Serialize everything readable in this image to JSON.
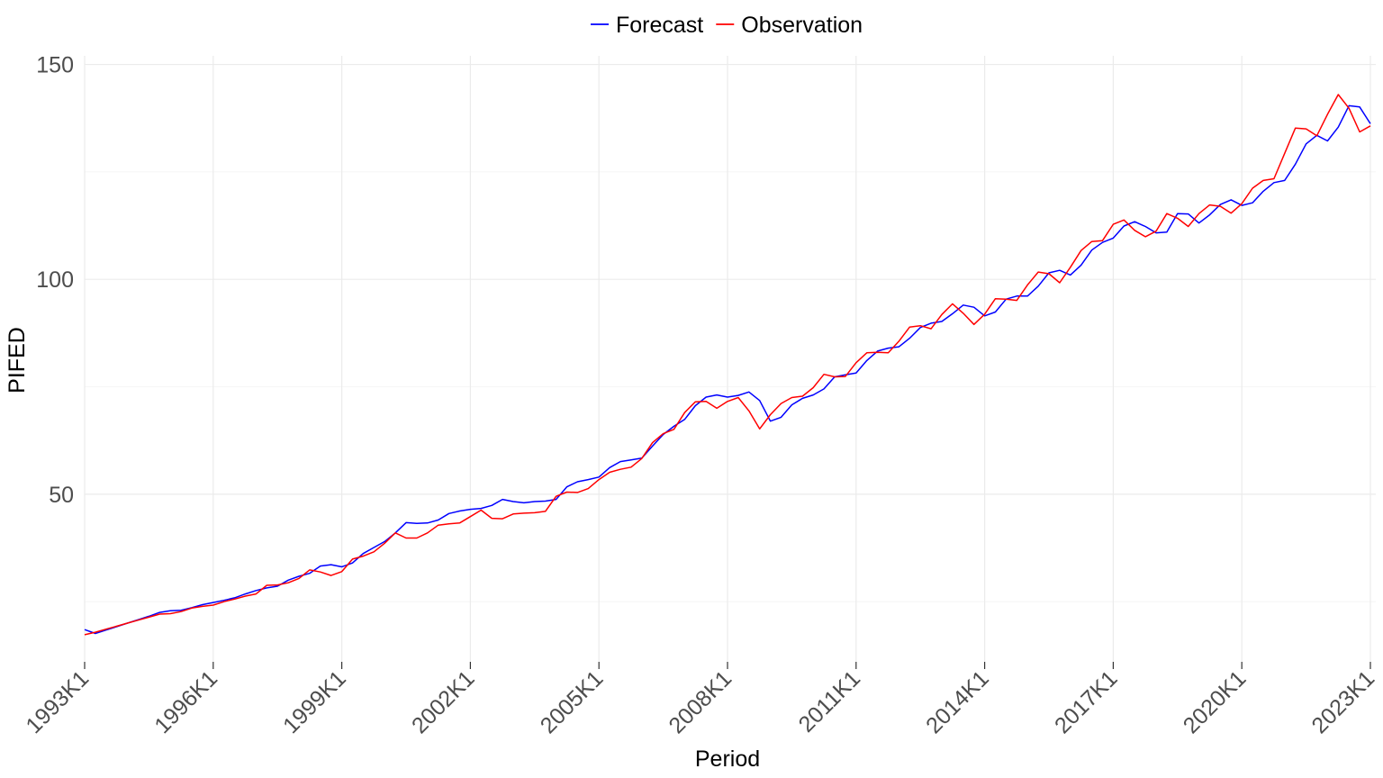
{
  "chart_data": {
    "type": "line",
    "title": "",
    "xlabel": "Period",
    "ylabel": "PIFED",
    "x_ticks": [
      "1993K1",
      "1996K1",
      "1999K1",
      "2002K1",
      "2005K1",
      "2008K1",
      "2011K1",
      "2014K1",
      "2017K1",
      "2020K1",
      "2023K1"
    ],
    "y_ticks": [
      50,
      100,
      150
    ],
    "ylim": [
      11,
      152
    ],
    "x_range": [
      "1993K1",
      "2023K1"
    ],
    "grid": true,
    "legend_position": "top",
    "start_period": "1993K1",
    "frequency": "quarterly",
    "series": [
      {
        "name": "Forecast",
        "color": "#0000ff",
        "values": [
          18.5,
          17.6,
          18.4,
          19.2,
          20.0,
          20.8,
          21.6,
          22.5,
          22.9,
          23.0,
          23.6,
          24.3,
          24.8,
          25.3,
          25.9,
          26.8,
          27.6,
          28.2,
          28.6,
          30.0,
          30.9,
          31.6,
          33.3,
          33.6,
          33.1,
          34.0,
          36.2,
          37.6,
          39.0,
          41.0,
          43.4,
          43.2,
          43.3,
          44.0,
          45.5,
          46.1,
          46.5,
          46.7,
          47.4,
          48.8,
          48.3,
          48.0,
          48.3,
          48.4,
          48.8,
          51.7,
          52.9,
          53.4,
          54.0,
          56.2,
          57.6,
          58.0,
          58.4,
          61.2,
          63.9,
          65.8,
          67.4,
          70.6,
          72.6,
          73.1,
          72.6,
          73.0,
          73.8,
          71.8,
          67.0,
          67.9,
          70.8,
          72.3,
          73.1,
          74.5,
          77.3,
          77.8,
          78.2,
          81.1,
          83.3,
          84.0,
          84.3,
          86.3,
          88.8,
          89.8,
          90.2,
          92.0,
          94.0,
          93.5,
          91.5,
          92.4,
          95.4,
          96.1,
          96.1,
          98.4,
          101.5,
          102.1,
          101.0,
          103.3,
          106.8,
          108.6,
          109.6,
          112.4,
          113.4,
          112.3,
          110.8,
          111.0,
          115.3,
          115.2,
          113.1,
          115.0,
          117.4,
          118.5,
          117.2,
          117.8,
          120.5,
          122.5,
          123.0,
          126.8,
          131.5,
          133.5,
          132.2,
          135.4,
          140.4,
          140.1,
          136.2
        ]
      },
      {
        "name": "Observation",
        "color": "#ff0000",
        "values": [
          17.3,
          17.9,
          18.6,
          19.3,
          20.0,
          20.7,
          21.4,
          22.1,
          22.2,
          22.7,
          23.5,
          23.9,
          24.2,
          25.0,
          25.6,
          26.3,
          26.8,
          28.8,
          28.9,
          29.4,
          30.4,
          32.4,
          31.9,
          31.1,
          32.0,
          34.9,
          35.6,
          36.6,
          38.6,
          41.0,
          39.8,
          39.8,
          41.0,
          42.8,
          43.1,
          43.3,
          44.8,
          46.3,
          44.4,
          44.3,
          45.4,
          45.6,
          45.7,
          46.0,
          49.5,
          50.5,
          50.4,
          51.3,
          53.4,
          55.1,
          55.8,
          56.3,
          58.3,
          62.0,
          64.1,
          65.1,
          69.0,
          71.5,
          71.6,
          70.0,
          71.6,
          72.5,
          69.4,
          65.2,
          68.5,
          71.1,
          72.5,
          72.8,
          74.8,
          77.9,
          77.3,
          77.4,
          80.6,
          82.9,
          83.0,
          82.9,
          85.6,
          88.9,
          89.2,
          88.5,
          91.8,
          94.3,
          92.1,
          89.5,
          91.9,
          95.5,
          95.4,
          95.1,
          98.7,
          101.7,
          101.3,
          99.2,
          102.8,
          106.7,
          108.8,
          109.0,
          112.8,
          113.8,
          111.4,
          109.9,
          111.2,
          115.3,
          114.2,
          112.3,
          115.3,
          117.3,
          117.0,
          115.4,
          117.6,
          121.2,
          123.0,
          123.4,
          129.3,
          135.2,
          135.0,
          133.4,
          138.4,
          143.0,
          139.8,
          134.3,
          135.7
        ]
      }
    ]
  }
}
